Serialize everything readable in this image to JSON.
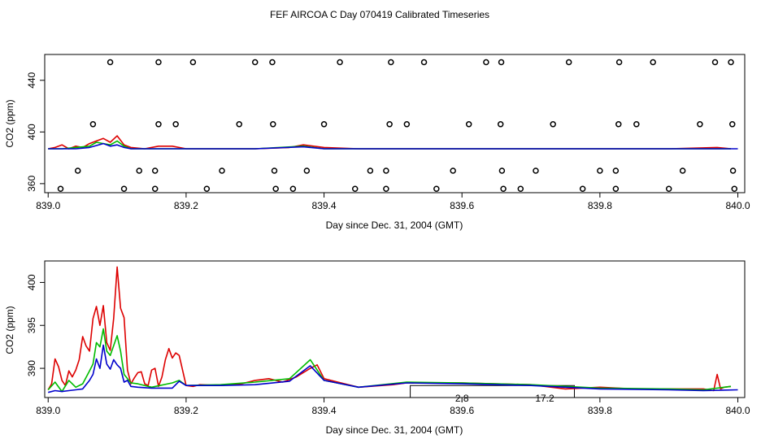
{
  "title": "FEF AIRCOA C  Day 070419  Calibrated Timeseries",
  "colors": {
    "red": "#dd0000",
    "green": "#00bb00",
    "blue": "#0000cc",
    "axis": "#000000"
  },
  "chart_data": [
    {
      "type": "line",
      "name": "top-panel",
      "xlabel": "Day since Dec. 31, 2004 (GMT)",
      "ylabel": "CO2 (ppm)",
      "xlim": [
        838.995,
        840.01
      ],
      "ylim": [
        353,
        460
      ],
      "xticks": [
        839.0,
        839.2,
        839.4,
        839.6,
        839.8,
        840.0
      ],
      "xtick_labels": [
        "839.0",
        "839.2",
        "839.4",
        "839.6",
        "839.8",
        "840.0"
      ],
      "yticks": [
        360,
        400,
        440
      ],
      "ytick_labels": [
        "360",
        "400",
        "440"
      ],
      "series": [
        {
          "name": "red",
          "color": "#dd0000",
          "x": [
            839.0,
            839.01,
            839.02,
            839.03,
            839.04,
            839.05,
            839.06,
            839.07,
            839.08,
            839.09,
            839.1,
            839.11,
            839.12,
            839.14,
            839.16,
            839.18,
            839.2,
            839.25,
            839.3,
            839.35,
            839.37,
            839.4,
            839.45,
            839.5,
            839.6,
            839.7,
            839.8,
            839.9,
            839.97,
            839.99
          ],
          "y": [
            387,
            388,
            390,
            387,
            389,
            388,
            391,
            393,
            395,
            392,
            397,
            390,
            388,
            387,
            389,
            389,
            387,
            387,
            387,
            388,
            390,
            388,
            387,
            387,
            387,
            387,
            387,
            387,
            388,
            387
          ]
        },
        {
          "name": "green",
          "color": "#00bb00",
          "x": [
            839.0,
            839.02,
            839.04,
            839.06,
            839.07,
            839.08,
            839.09,
            839.1,
            839.11,
            839.12,
            839.15,
            839.2,
            839.3,
            839.37,
            839.4,
            839.5,
            839.7,
            839.9,
            839.99
          ],
          "y": [
            387,
            387,
            388,
            389,
            392,
            391,
            390,
            393,
            389,
            387,
            387,
            387,
            387,
            389,
            387,
            387,
            387,
            387,
            387
          ]
        },
        {
          "name": "blue",
          "color": "#0000cc",
          "x": [
            839.0,
            839.02,
            839.04,
            839.06,
            839.08,
            839.09,
            839.1,
            839.11,
            839.12,
            839.15,
            839.2,
            839.3,
            839.37,
            839.4,
            839.5,
            839.7,
            839.9,
            840.0
          ],
          "y": [
            387,
            387,
            387,
            388,
            391,
            389,
            390,
            388,
            387,
            387,
            387,
            387,
            388.5,
            387,
            387,
            387,
            387,
            387
          ]
        }
      ],
      "points": [
        {
          "x": 839.09,
          "y": 454
        },
        {
          "x": 839.16,
          "y": 454
        },
        {
          "x": 839.21,
          "y": 454
        },
        {
          "x": 839.3,
          "y": 454
        },
        {
          "x": 839.325,
          "y": 454
        },
        {
          "x": 839.423,
          "y": 454
        },
        {
          "x": 839.497,
          "y": 454
        },
        {
          "x": 839.545,
          "y": 454
        },
        {
          "x": 839.635,
          "y": 454
        },
        {
          "x": 839.657,
          "y": 454
        },
        {
          "x": 839.755,
          "y": 454
        },
        {
          "x": 839.828,
          "y": 454
        },
        {
          "x": 839.877,
          "y": 454
        },
        {
          "x": 839.967,
          "y": 454
        },
        {
          "x": 839.99,
          "y": 454
        },
        {
          "x": 839.065,
          "y": 406
        },
        {
          "x": 839.16,
          "y": 406
        },
        {
          "x": 839.185,
          "y": 406
        },
        {
          "x": 839.277,
          "y": 406
        },
        {
          "x": 839.326,
          "y": 406
        },
        {
          "x": 839.4,
          "y": 406
        },
        {
          "x": 839.495,
          "y": 406
        },
        {
          "x": 839.52,
          "y": 406
        },
        {
          "x": 839.61,
          "y": 406
        },
        {
          "x": 839.656,
          "y": 406
        },
        {
          "x": 839.732,
          "y": 406
        },
        {
          "x": 839.827,
          "y": 406
        },
        {
          "x": 839.853,
          "y": 406
        },
        {
          "x": 839.945,
          "y": 406
        },
        {
          "x": 839.992,
          "y": 406
        },
        {
          "x": 839.043,
          "y": 370
        },
        {
          "x": 839.132,
          "y": 370
        },
        {
          "x": 839.155,
          "y": 370
        },
        {
          "x": 839.252,
          "y": 370
        },
        {
          "x": 839.328,
          "y": 370
        },
        {
          "x": 839.375,
          "y": 370
        },
        {
          "x": 839.467,
          "y": 370
        },
        {
          "x": 839.49,
          "y": 370
        },
        {
          "x": 839.587,
          "y": 370
        },
        {
          "x": 839.658,
          "y": 370
        },
        {
          "x": 839.707,
          "y": 370
        },
        {
          "x": 839.8,
          "y": 370
        },
        {
          "x": 839.823,
          "y": 370
        },
        {
          "x": 839.92,
          "y": 370
        },
        {
          "x": 839.993,
          "y": 370
        },
        {
          "x": 839.018,
          "y": 356
        },
        {
          "x": 839.11,
          "y": 356
        },
        {
          "x": 839.155,
          "y": 356
        },
        {
          "x": 839.23,
          "y": 356
        },
        {
          "x": 839.33,
          "y": 356
        },
        {
          "x": 839.355,
          "y": 356
        },
        {
          "x": 839.445,
          "y": 356
        },
        {
          "x": 839.49,
          "y": 356
        },
        {
          "x": 839.563,
          "y": 356
        },
        {
          "x": 839.66,
          "y": 356
        },
        {
          "x": 839.685,
          "y": 356
        },
        {
          "x": 839.775,
          "y": 356
        },
        {
          "x": 839.823,
          "y": 356
        },
        {
          "x": 839.9,
          "y": 356
        },
        {
          "x": 839.995,
          "y": 356
        }
      ]
    },
    {
      "type": "line",
      "name": "bottom-panel",
      "xlabel": "Day since Dec. 31, 2004 (GMT)",
      "ylabel": "CO2 (ppm)",
      "xlim": [
        838.995,
        840.01
      ],
      "ylim": [
        386.6,
        402.5
      ],
      "xticks": [
        839.0,
        839.2,
        839.4,
        839.6,
        839.8,
        840.0
      ],
      "xtick_labels": [
        "839.0",
        "839.2",
        "839.4",
        "839.6",
        "839.8",
        "840.0"
      ],
      "yticks": [
        390,
        395,
        400
      ],
      "ytick_labels": [
        "390",
        "395",
        "400"
      ],
      "annotation_box": {
        "x0": 839.525,
        "x1": 839.763,
        "y_top": 388.0
      },
      "annotation_labels": [
        {
          "x": 839.6,
          "text": "2.8"
        },
        {
          "x": 839.72,
          "text": "17.2"
        }
      ],
      "series": [
        {
          "name": "red",
          "color": "#dd0000",
          "x": [
            839.0,
            839.005,
            839.01,
            839.015,
            839.02,
            839.025,
            839.03,
            839.035,
            839.04,
            839.045,
            839.05,
            839.055,
            839.06,
            839.065,
            839.07,
            839.075,
            839.08,
            839.085,
            839.09,
            839.095,
            839.1,
            839.105,
            839.11,
            839.115,
            839.12,
            839.125,
            839.13,
            839.135,
            839.14,
            839.145,
            839.15,
            839.155,
            839.16,
            839.165,
            839.17,
            839.175,
            839.18,
            839.185,
            839.19,
            839.2,
            839.21,
            839.22,
            839.25,
            839.28,
            839.3,
            839.32,
            839.34,
            839.36,
            839.38,
            839.39,
            839.4,
            839.42,
            839.45,
            839.5,
            839.52,
            839.6,
            839.7,
            839.75,
            839.8,
            839.85,
            839.9,
            839.95,
            839.965,
            839.97,
            839.975,
            839.98,
            839.99
          ],
          "y": [
            387.5,
            388.2,
            391.1,
            390.2,
            388.6,
            388.0,
            389.7,
            389.0,
            389.8,
            391.0,
            393.7,
            392.6,
            392.0,
            395.8,
            397.2,
            395.0,
            397.3,
            393.0,
            392.1,
            395.8,
            401.8,
            397.0,
            395.9,
            389.8,
            388.2,
            388.9,
            389.5,
            389.6,
            388.2,
            388.0,
            389.8,
            390.0,
            387.9,
            389.0,
            391.0,
            392.3,
            391.2,
            391.8,
            391.5,
            388.0,
            387.9,
            388.1,
            388.0,
            388.2,
            388.6,
            388.8,
            388.4,
            389.0,
            390.0,
            390.4,
            388.8,
            388.4,
            387.8,
            388.1,
            388.3,
            388.3,
            388.1,
            387.6,
            387.8,
            387.6,
            387.6,
            387.6,
            387.4,
            389.3,
            387.6,
            387.8,
            387.9
          ]
        },
        {
          "name": "green",
          "color": "#00bb00",
          "x": [
            839.0,
            839.01,
            839.02,
            839.03,
            839.04,
            839.05,
            839.06,
            839.065,
            839.07,
            839.075,
            839.08,
            839.085,
            839.09,
            839.1,
            839.105,
            839.11,
            839.12,
            839.13,
            839.15,
            839.18,
            839.19,
            839.2,
            839.25,
            839.3,
            839.35,
            839.38,
            839.4,
            839.45,
            839.52,
            839.6,
            839.7,
            839.8,
            839.9,
            839.95,
            839.99
          ],
          "y": [
            387.5,
            388.4,
            387.3,
            388.6,
            387.8,
            388.2,
            389.7,
            390.5,
            393.0,
            392.5,
            394.6,
            392.0,
            391.5,
            393.8,
            392.0,
            389.3,
            388.3,
            388.2,
            387.8,
            388.3,
            388.6,
            388.0,
            388.1,
            388.4,
            388.8,
            391.0,
            388.6,
            387.8,
            388.4,
            388.3,
            388.1,
            387.7,
            387.6,
            387.5,
            387.9
          ]
        },
        {
          "name": "blue",
          "color": "#0000cc",
          "x": [
            839.0,
            839.01,
            839.02,
            839.03,
            839.04,
            839.05,
            839.06,
            839.065,
            839.07,
            839.075,
            839.08,
            839.085,
            839.09,
            839.095,
            839.1,
            839.105,
            839.11,
            839.115,
            839.12,
            839.13,
            839.15,
            839.18,
            839.19,
            839.2,
            839.25,
            839.3,
            839.35,
            839.38,
            839.4,
            839.45,
            839.52,
            839.6,
            839.7,
            839.8,
            839.9,
            839.95,
            840.0
          ],
          "y": [
            387.2,
            387.4,
            387.3,
            387.4,
            387.5,
            387.6,
            388.6,
            389.3,
            391.1,
            390.0,
            392.7,
            390.5,
            389.9,
            391.0,
            390.4,
            390.0,
            388.4,
            388.6,
            387.9,
            387.8,
            387.7,
            387.7,
            388.5,
            388.0,
            388.0,
            388.1,
            388.5,
            390.3,
            388.6,
            387.8,
            388.3,
            388.2,
            388.0,
            387.6,
            387.5,
            387.4,
            387.5
          ]
        }
      ]
    }
  ]
}
